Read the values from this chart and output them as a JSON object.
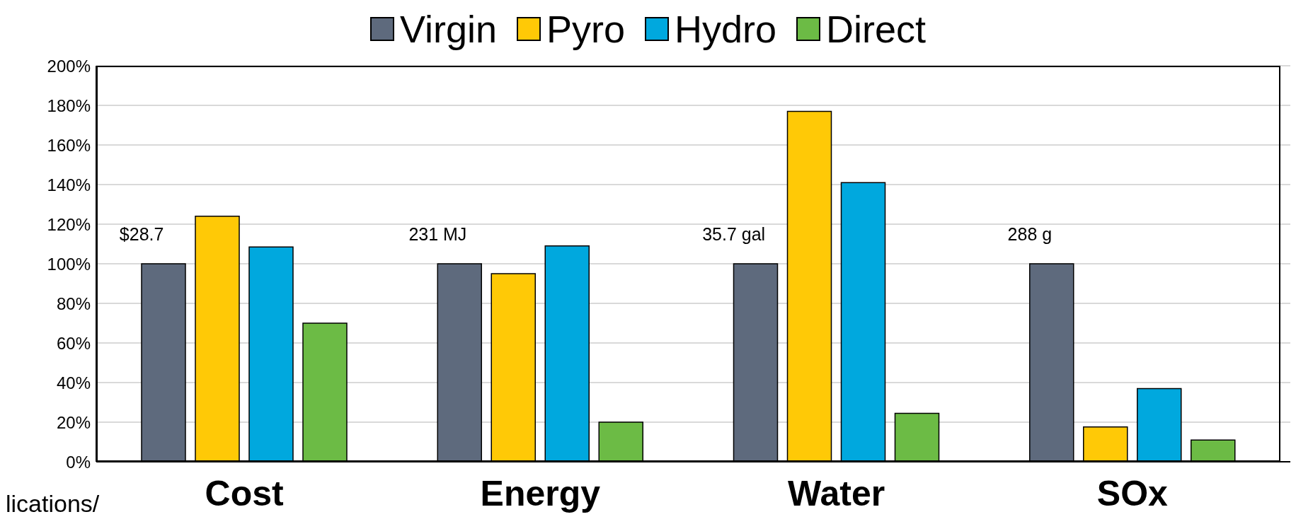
{
  "chart_data": {
    "type": "bar",
    "categories": [
      "Cost",
      "Energy",
      "Water",
      "SOx"
    ],
    "series": [
      {
        "name": "Virgin",
        "color": "#5e6a7d",
        "values": [
          100,
          100,
          100,
          100
        ]
      },
      {
        "name": "Pyro",
        "color": "#ffc906",
        "values": [
          124,
          95,
          177,
          17.6
        ]
      },
      {
        "name": "Hydro",
        "color": "#00a8de",
        "values": [
          108.5,
          109,
          141,
          37
        ]
      },
      {
        "name": "Direct",
        "color": "#6cbb45",
        "values": [
          70,
          20,
          24.5,
          11
        ]
      }
    ],
    "ylim": [
      0,
      200
    ],
    "yticks": [
      {
        "value": 0,
        "label": "0%"
      },
      {
        "value": 20,
        "label": "20%"
      },
      {
        "value": 40,
        "label": "40%"
      },
      {
        "value": 60,
        "label": "60%"
      },
      {
        "value": 80,
        "label": "80%"
      },
      {
        "value": 100,
        "label": "100%"
      },
      {
        "value": 120,
        "label": "120%"
      },
      {
        "value": 140,
        "label": "140%"
      },
      {
        "value": 160,
        "label": "160%"
      },
      {
        "value": 180,
        "label": "180%"
      },
      {
        "value": 200,
        "label": "200%"
      }
    ],
    "grid": "y",
    "legend": "top",
    "annotations": [
      "$28.7",
      "231 MJ",
      "35.7 gal",
      "288 g",
      "lications/"
    ]
  }
}
